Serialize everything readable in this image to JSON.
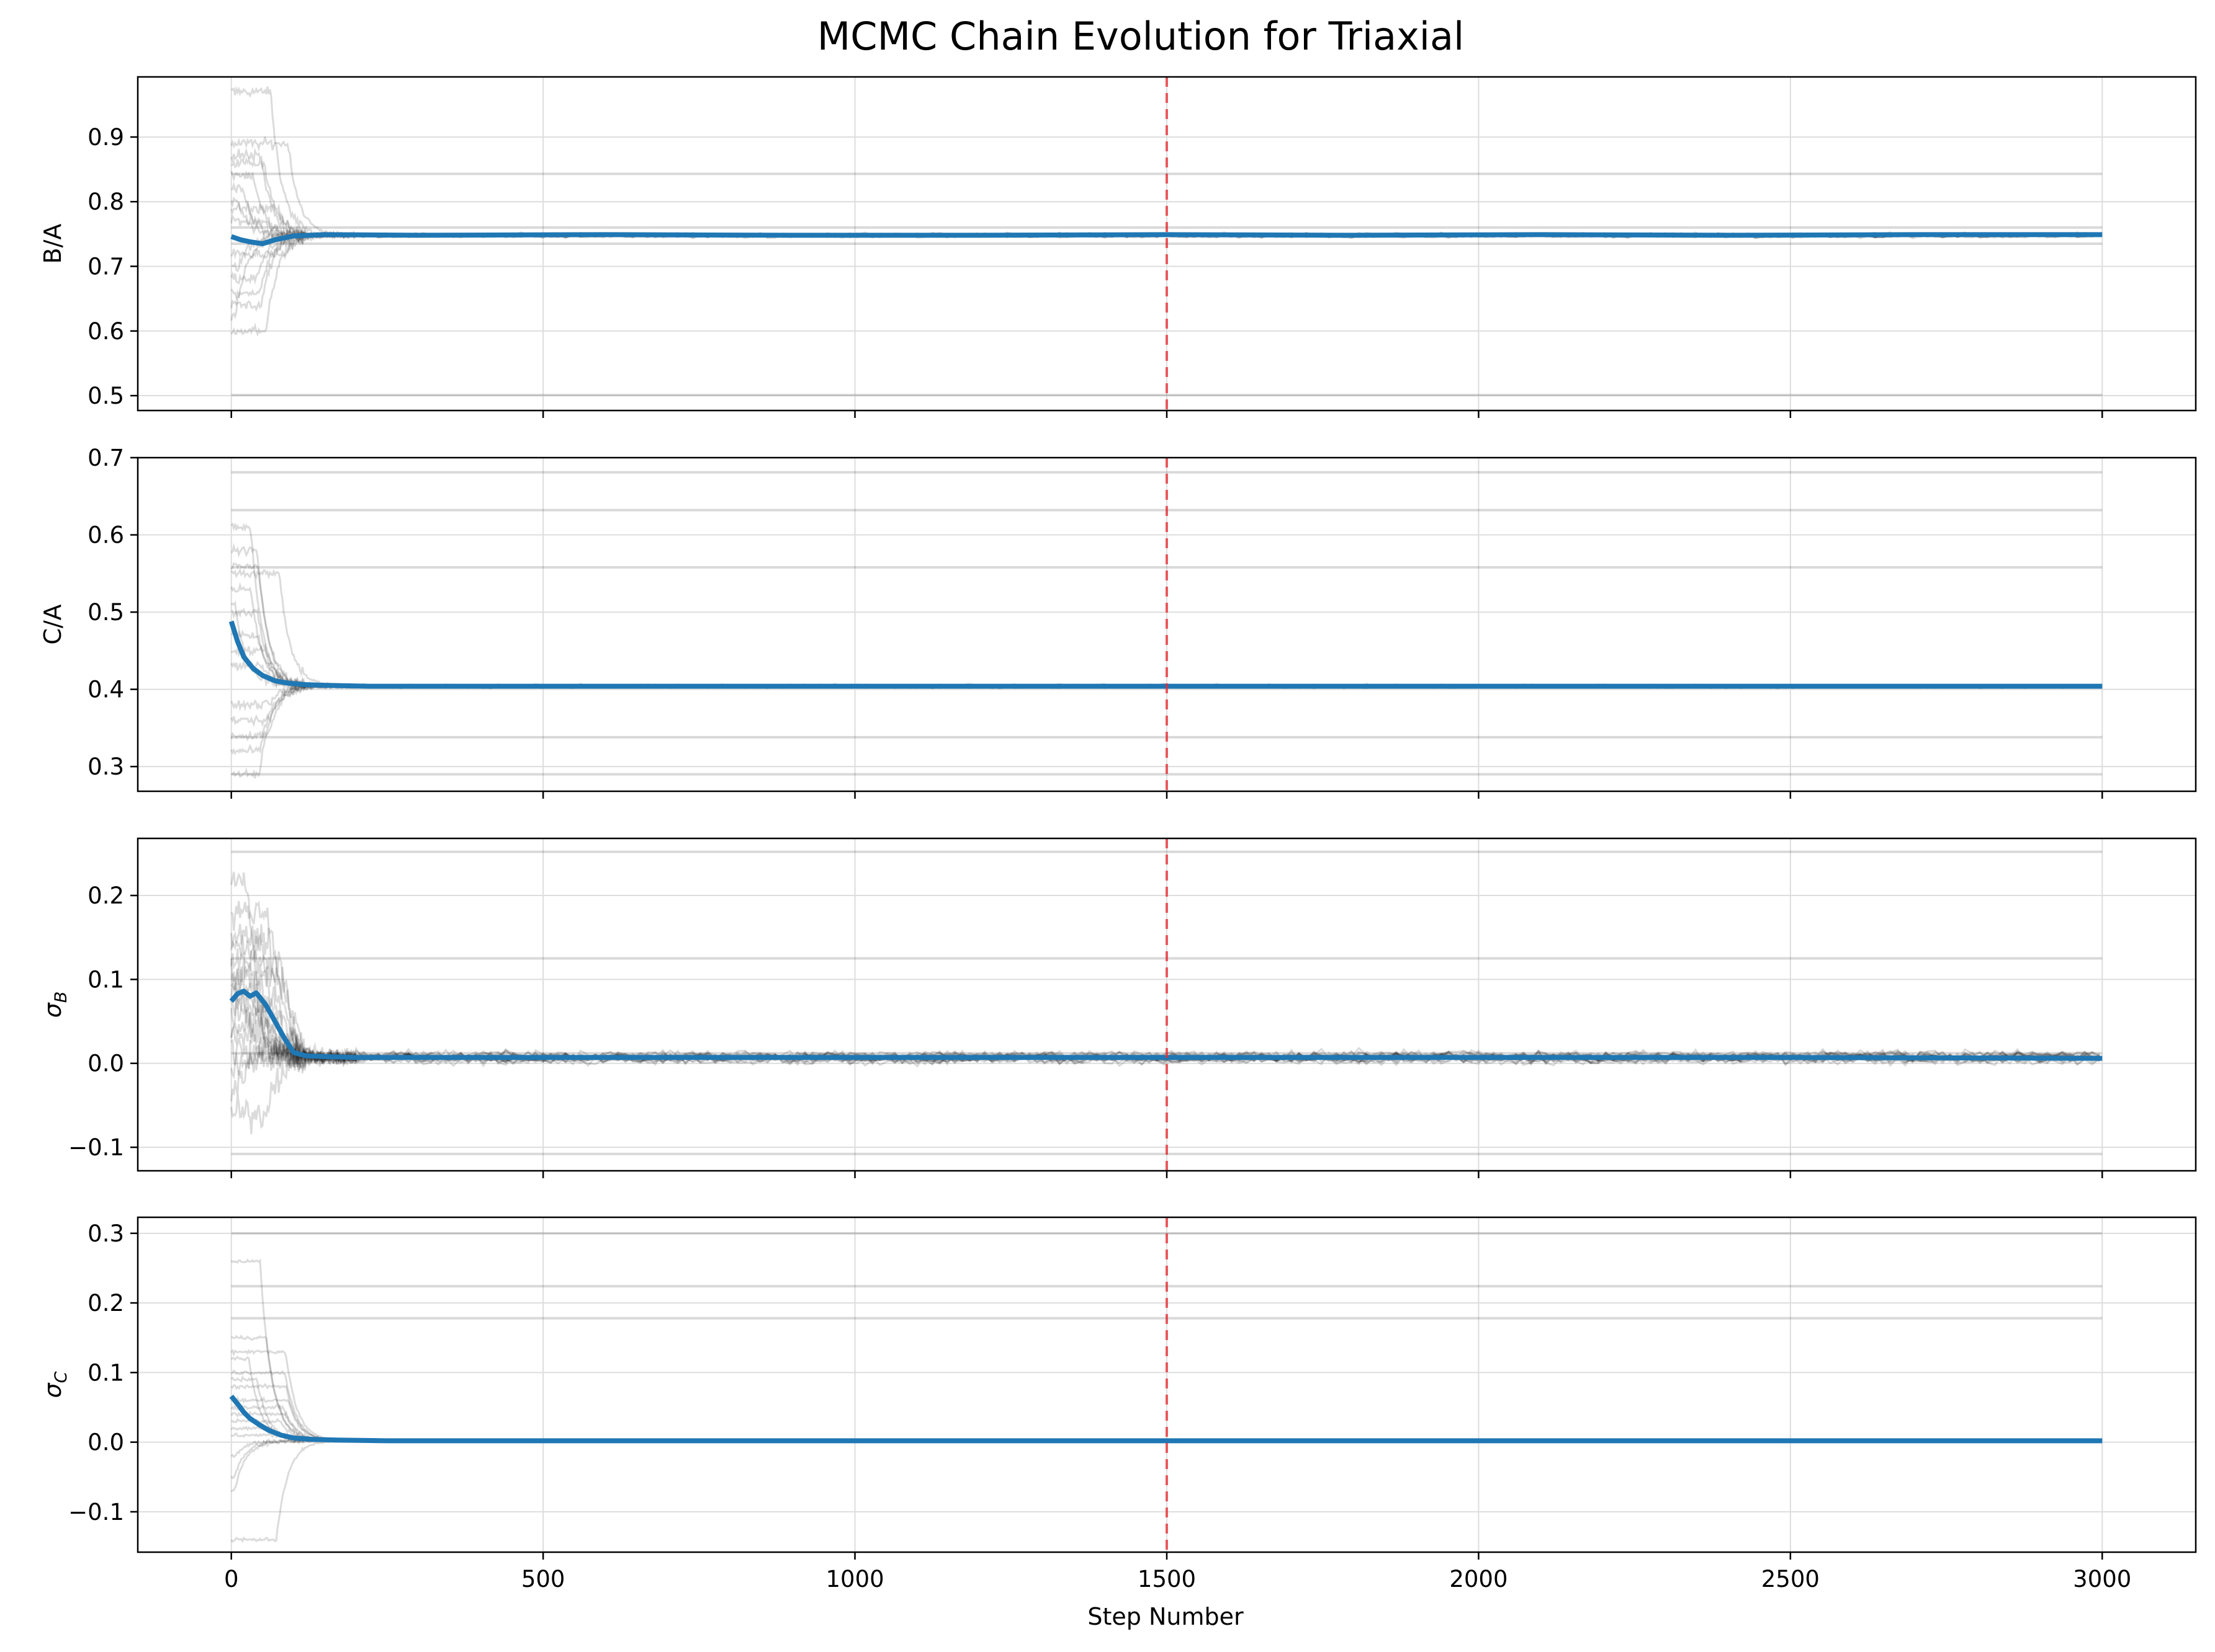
{
  "chart_data": {
    "type": "line",
    "title": "MCMC Chain Evolution for Triaxial",
    "xlabel": "Step Number",
    "xlim": [
      -150,
      3150
    ],
    "x_ticks": [
      0,
      500,
      1000,
      1500,
      2000,
      2500,
      3000
    ],
    "grid": true,
    "burn_in_step": 1500,
    "colors": {
      "mean_chain": "#1f77b4",
      "walkers": "#000000",
      "burn_in_line": "#e8292d",
      "grid": "#dddddd"
    },
    "panels": [
      {
        "ylabel": "B/A",
        "ylabel_sub": "",
        "ylim": [
          0.477,
          0.993
        ],
        "y_ticks": [
          0.5,
          0.6,
          0.7,
          0.8,
          0.9
        ],
        "y_tick_labels": [
          "0.5",
          "0.6",
          "0.7",
          "0.8",
          "0.9"
        ],
        "mean_chain": {
          "x": [
            0,
            15,
            30,
            50,
            70,
            100,
            150,
            300,
            600,
            900,
            1200,
            1500,
            1800,
            2100,
            2400,
            2700,
            3000
          ],
          "y": [
            0.746,
            0.741,
            0.738,
            0.735,
            0.741,
            0.747,
            0.749,
            0.748,
            0.749,
            0.748,
            0.748,
            0.749,
            0.748,
            0.749,
            0.748,
            0.749,
            0.749
          ]
        },
        "walker_converged": {
          "center": 0.748,
          "spread": 0.003
        },
        "walker_start": [
          0.97,
          0.89,
          0.87,
          0.86,
          0.84,
          0.82,
          0.8,
          0.79,
          0.77,
          0.72,
          0.7,
          0.68,
          0.66,
          0.64,
          0.62,
          0.6
        ],
        "stuck_walkers": [
          0.843,
          0.501,
          0.735,
          0.76
        ]
      },
      {
        "ylabel": "C/A",
        "ylabel_sub": "",
        "ylim": [
          0.268,
          0.7
        ],
        "y_ticks": [
          0.3,
          0.4,
          0.5,
          0.6,
          0.7
        ],
        "y_tick_labels": [
          "0.3",
          "0.4",
          "0.5",
          "0.6",
          "0.7"
        ],
        "mean_chain": {
          "x": [
            0,
            10,
            20,
            35,
            50,
            70,
            90,
            120,
            160,
            220,
            400,
            700,
            1000,
            1500,
            2000,
            2500,
            3000
          ],
          "y": [
            0.488,
            0.462,
            0.442,
            0.427,
            0.418,
            0.411,
            0.408,
            0.406,
            0.405,
            0.404,
            0.404,
            0.404,
            0.404,
            0.404,
            0.404,
            0.404,
            0.404
          ]
        },
        "walker_converged": {
          "center": 0.404,
          "spread": 0.002
        },
        "walker_start": [
          0.61,
          0.58,
          0.56,
          0.55,
          0.53,
          0.51,
          0.5,
          0.47,
          0.45,
          0.43,
          0.38,
          0.36,
          0.34,
          0.32,
          0.29
        ],
        "stuck_walkers": [
          0.681,
          0.632,
          0.558,
          0.338,
          0.29
        ]
      },
      {
        "ylabel": "σ",
        "ylabel_sub": "B",
        "ylim": [
          -0.128,
          0.268
        ],
        "y_ticks": [
          -0.1,
          0.0,
          0.1,
          0.2
        ],
        "y_tick_labels": [
          "−0.1",
          "0.0",
          "0.1",
          "0.2"
        ],
        "mean_chain": {
          "x": [
            0,
            10,
            20,
            30,
            40,
            55,
            70,
            85,
            100,
            120,
            150,
            200,
            300,
            600,
            1000,
            1500,
            2000,
            2500,
            3000
          ],
          "y": [
            0.074,
            0.083,
            0.086,
            0.08,
            0.084,
            0.07,
            0.05,
            0.03,
            0.013,
            0.009,
            0.008,
            0.007,
            0.007,
            0.007,
            0.007,
            0.007,
            0.007,
            0.007,
            0.006
          ]
        },
        "walker_converged": {
          "center": 0.007,
          "spread": 0.007
        },
        "walker_start": [
          0.22,
          0.18,
          0.15,
          0.14,
          0.12,
          0.11,
          0.1,
          0.09,
          0.08,
          0.07,
          0.06,
          0.05,
          0.04,
          0.02,
          0.0,
          -0.03,
          -0.06
        ],
        "stuck_walkers": [
          0.252,
          0.125,
          -0.108,
          0.012
        ]
      },
      {
        "ylabel": "σ",
        "ylabel_sub": "C",
        "ylim": [
          -0.158,
          0.323
        ],
        "y_ticks": [
          -0.1,
          0.0,
          0.1,
          0.2,
          0.3
        ],
        "y_tick_labels": [
          "−0.1",
          "0.0",
          "0.1",
          "0.2",
          "0.3"
        ],
        "mean_chain": {
          "x": [
            0,
            10,
            20,
            30,
            45,
            60,
            80,
            100,
            130,
            170,
            250,
            500,
            1000,
            1500,
            2000,
            2500,
            3000
          ],
          "y": [
            0.066,
            0.055,
            0.043,
            0.034,
            0.025,
            0.017,
            0.01,
            0.006,
            0.004,
            0.003,
            0.002,
            0.002,
            0.002,
            0.002,
            0.002,
            0.002,
            0.002
          ]
        },
        "walker_converged": {
          "center": 0.002,
          "spread": 0.001
        },
        "walker_start": [
          0.26,
          0.15,
          0.13,
          0.12,
          0.1,
          0.09,
          0.08,
          0.06,
          0.05,
          0.04,
          0.03,
          0.02,
          0.01,
          -0.02,
          -0.05,
          -0.07,
          -0.14
        ],
        "stuck_walkers": [
          0.3,
          0.224,
          0.178
        ]
      }
    ]
  }
}
